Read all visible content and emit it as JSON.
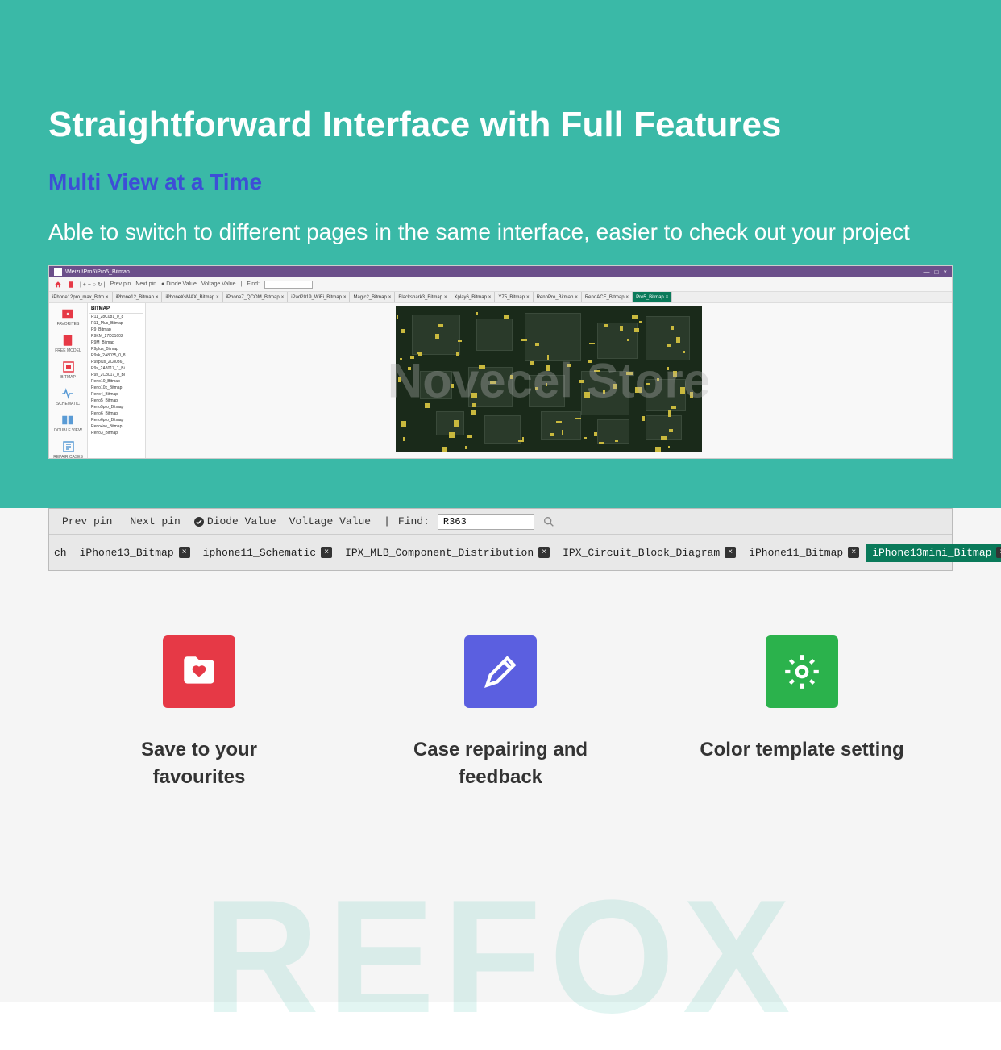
{
  "hero": {
    "title": "Straightforward Interface with Full Features",
    "subtitle": "Multi View at a Time",
    "description": "Able to switch to different pages in the same interface, easier to check out your project"
  },
  "app": {
    "path": "\\Meizu\\Pro5\\Pro5_Bitmap",
    "toolbar": {
      "prev": "Prev pin",
      "next": "Next pin",
      "diode": "Diode Value",
      "voltage": "Voltage Value",
      "find_label": "Find:"
    },
    "tabs": [
      "iPhone12pro_max_Bitm",
      "iPhone12_Bitmap",
      "iPhoneXsMAX_Bitmap",
      "iPhone7_QCOM_Bitmap",
      "iPad2019_WiFi_Bitmap",
      "Magic2_Bitmap",
      "Blackshark3_Bitmap",
      "Xplay6_Bitmap",
      "Y75_Bitmap",
      "RenoPro_Bitmap",
      "RenoACE_Bitmap",
      "Pro5_Bitmap"
    ],
    "active_tab_index": 11,
    "sidebar": [
      {
        "label": "FAVORITES",
        "color": "#e63946"
      },
      {
        "label": "FREE MODEL",
        "color": "#e63946"
      },
      {
        "label": "BITMAP",
        "color": "#e63946"
      },
      {
        "label": "SCHEMATIC",
        "color": "#5a9bd5"
      },
      {
        "label": "DOUBLE VIEW",
        "color": "#5a9bd5"
      },
      {
        "label": "REPAIR CASES",
        "color": "#5a9bd5"
      }
    ],
    "filelist_header": "BITMAP",
    "files": [
      "R11_28C081_0_8",
      "R11_Plus_Bitmap",
      "R9_Bitmap",
      "R9KM_27D31602",
      "R9M_Bitmap",
      "R9plus_Bitmap",
      "R9sk_2A8035_0_8",
      "R9splus_2C8036_",
      "R9s_2A8017_1_Bi",
      "R9s_2C8017_0_Bi",
      "Reno10_Bitmap",
      "Reno10x_Bitmap",
      "Reno4_Bitmap",
      "Reno5_Bitmap",
      "Reno5pro_Bitmap",
      "Reno6_Bitmap",
      "Reno6pro_Bitmap",
      "Reno4se_Bitmap",
      "Reno3_Bitmap"
    ],
    "watermark": "Novecel Store"
  },
  "tabbar": {
    "prev": "Prev pin",
    "next": "Next pin",
    "diode": "Diode Value",
    "voltage": "Voltage Value",
    "find_label": "Find:",
    "find_value": "R363",
    "left_stub": "ch",
    "tabs": [
      {
        "label": "iPhone13_Bitmap",
        "active": false
      },
      {
        "label": "iphone11_Schematic",
        "active": false
      },
      {
        "label": "IPX_MLB_Component_Distribution",
        "active": false
      },
      {
        "label": "IPX_Circuit_Block_Diagram",
        "active": false
      },
      {
        "label": "iPhone11_Bitmap",
        "active": false
      },
      {
        "label": "iPhone13mini_Bitmap",
        "active": true
      }
    ]
  },
  "features": [
    {
      "text": "Save to your favourites",
      "bg": "#e63946"
    },
    {
      "text": "Case repairing and feedback",
      "bg": "#5b5fe0"
    },
    {
      "text": "Color template setting",
      "bg": "#2bb24c"
    }
  ],
  "bg_watermark": "REFOX",
  "colors": {
    "teal": "#3ab9a7",
    "subtitle": "#3d4ed6",
    "gray_bg": "#f5f5f5"
  }
}
